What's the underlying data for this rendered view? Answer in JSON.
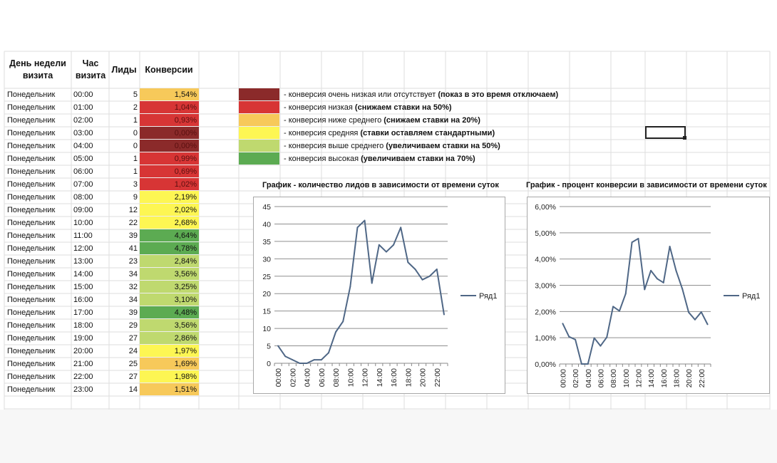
{
  "table": {
    "headers": {
      "day": "День недели\nвизита",
      "hour": "Час\nвизита",
      "leads": "Лиды",
      "conversions": "Конверсии"
    },
    "rows": [
      {
        "day": "Понедельник",
        "hour": "00:00",
        "leads": "5",
        "conv": "1,54%",
        "level": "below"
      },
      {
        "day": "Понедельник",
        "hour": "01:00",
        "leads": "2",
        "conv": "1,04%",
        "level": "low"
      },
      {
        "day": "Понедельник",
        "hour": "02:00",
        "leads": "1",
        "conv": "0,93%",
        "level": "low"
      },
      {
        "day": "Понедельник",
        "hour": "03:00",
        "leads": "0",
        "conv": "0,00%",
        "level": "very-low"
      },
      {
        "day": "Понедельник",
        "hour": "04:00",
        "leads": "0",
        "conv": "0,00%",
        "level": "very-low"
      },
      {
        "day": "Понедельник",
        "hour": "05:00",
        "leads": "1",
        "conv": "0,99%",
        "level": "low"
      },
      {
        "day": "Понедельник",
        "hour": "06:00",
        "leads": "1",
        "conv": "0,69%",
        "level": "low"
      },
      {
        "day": "Понедельник",
        "hour": "07:00",
        "leads": "3",
        "conv": "1,02%",
        "level": "low"
      },
      {
        "day": "Понедельник",
        "hour": "08:00",
        "leads": "9",
        "conv": "2,19%",
        "level": "average"
      },
      {
        "day": "Понедельник",
        "hour": "09:00",
        "leads": "12",
        "conv": "2,02%",
        "level": "average"
      },
      {
        "day": "Понедельник",
        "hour": "10:00",
        "leads": "22",
        "conv": "2,68%",
        "level": "average"
      },
      {
        "day": "Понедельник",
        "hour": "11:00",
        "leads": "39",
        "conv": "4,64%",
        "level": "high"
      },
      {
        "day": "Понедельник",
        "hour": "12:00",
        "leads": "41",
        "conv": "4,78%",
        "level": "high"
      },
      {
        "day": "Понедельник",
        "hour": "13:00",
        "leads": "23",
        "conv": "2,84%",
        "level": "above"
      },
      {
        "day": "Понедельник",
        "hour": "14:00",
        "leads": "34",
        "conv": "3,56%",
        "level": "above"
      },
      {
        "day": "Понедельник",
        "hour": "15:00",
        "leads": "32",
        "conv": "3,25%",
        "level": "above"
      },
      {
        "day": "Понедельник",
        "hour": "16:00",
        "leads": "34",
        "conv": "3,10%",
        "level": "above"
      },
      {
        "day": "Понедельник",
        "hour": "17:00",
        "leads": "39",
        "conv": "4,48%",
        "level": "high"
      },
      {
        "day": "Понедельник",
        "hour": "18:00",
        "leads": "29",
        "conv": "3,56%",
        "level": "above"
      },
      {
        "day": "Понедельник",
        "hour": "19:00",
        "leads": "27",
        "conv": "2,86%",
        "level": "above"
      },
      {
        "day": "Понедельник",
        "hour": "20:00",
        "leads": "24",
        "conv": "1,97%",
        "level": "average"
      },
      {
        "day": "Понедельник",
        "hour": "21:00",
        "leads": "25",
        "conv": "1,69%",
        "level": "below"
      },
      {
        "day": "Понедельник",
        "hour": "22:00",
        "leads": "27",
        "conv": "1,98%",
        "level": "average"
      },
      {
        "day": "Понедельник",
        "hour": "23:00",
        "leads": "14",
        "conv": "1,51%",
        "level": "below"
      }
    ]
  },
  "level_colors": {
    "very-low": "#8b2a2a",
    "low": "#d73535",
    "below": "#f7c95a",
    "average": "#fdf653",
    "above": "#bfd96f",
    "high": "#5cab52"
  },
  "legend": [
    {
      "level": "very-low",
      "text": "- конверсия очень низкая или отсутствует ",
      "action": "(показ в это время отключаем)"
    },
    {
      "level": "low",
      "text": "- конверсия низкая ",
      "action": "(снижаем ставки на 50%)"
    },
    {
      "level": "below",
      "text": "- конверсия ниже среднего ",
      "action": "(снижаем ставки на 20%)"
    },
    {
      "level": "average",
      "text": "- конверсия средняя ",
      "action": "(ставки оставляем стандартными)"
    },
    {
      "level": "above",
      "text": "- конверсия выше среднего ",
      "action": "(увеличиваем ставки на 50%)"
    },
    {
      "level": "high",
      "text": "- конверсия высокая ",
      "action": "(увеличиваем ставки на 70%)"
    }
  ],
  "chart_data": [
    {
      "type": "line",
      "title": "График - количество лидов в зависимости от времени суток",
      "x": [
        "00:00",
        "01:00",
        "02:00",
        "03:00",
        "04:00",
        "05:00",
        "06:00",
        "07:00",
        "08:00",
        "09:00",
        "10:00",
        "11:00",
        "12:00",
        "13:00",
        "14:00",
        "15:00",
        "16:00",
        "17:00",
        "18:00",
        "19:00",
        "20:00",
        "21:00",
        "22:00",
        "23:00"
      ],
      "x_tick_labels": [
        "00:00",
        "02:00",
        "04:00",
        "06:00",
        "08:00",
        "10:00",
        "12:00",
        "14:00",
        "16:00",
        "18:00",
        "20:00",
        "22:00"
      ],
      "y_ticks": [
        "0",
        "5",
        "10",
        "15",
        "20",
        "25",
        "30",
        "35",
        "40",
        "45"
      ],
      "ylim": [
        0,
        45
      ],
      "series": [
        {
          "name": "Ряд1",
          "values": [
            5,
            2,
            1,
            0,
            0,
            1,
            1,
            3,
            9,
            12,
            22,
            39,
            41,
            23,
            34,
            32,
            34,
            39,
            29,
            27,
            24,
            25,
            27,
            14
          ],
          "color": "#4f6786"
        }
      ],
      "legend_position": "right",
      "grid": true
    },
    {
      "type": "line",
      "title": "График - процент конверсии в зависимости от времени суток",
      "x": [
        "00:00",
        "01:00",
        "02:00",
        "03:00",
        "04:00",
        "05:00",
        "06:00",
        "07:00",
        "08:00",
        "09:00",
        "10:00",
        "11:00",
        "12:00",
        "13:00",
        "14:00",
        "15:00",
        "16:00",
        "17:00",
        "18:00",
        "19:00",
        "20:00",
        "21:00",
        "22:00",
        "23:00"
      ],
      "x_tick_labels": [
        "00:00",
        "02:00",
        "04:00",
        "06:00",
        "08:00",
        "10:00",
        "12:00",
        "14:00",
        "16:00",
        "18:00",
        "20:00",
        "22:00"
      ],
      "y_ticks": [
        "0,00%",
        "1,00%",
        "2,00%",
        "3,00%",
        "4,00%",
        "5,00%",
        "6,00%"
      ],
      "ylim": [
        0,
        6
      ],
      "series": [
        {
          "name": "Ряд1",
          "values": [
            1.54,
            1.04,
            0.93,
            0,
            0,
            0.99,
            0.69,
            1.02,
            2.19,
            2.02,
            2.68,
            4.64,
            4.78,
            2.84,
            3.56,
            3.25,
            3.1,
            4.48,
            3.56,
            2.86,
            1.97,
            1.69,
            1.98,
            1.51
          ],
          "color": "#4f6786"
        }
      ],
      "legend_position": "right",
      "grid": true
    }
  ]
}
